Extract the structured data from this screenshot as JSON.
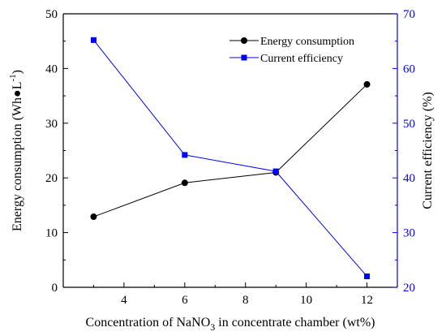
{
  "chart_data": {
    "type": "line",
    "x": [
      3,
      6,
      9,
      12
    ],
    "xlim": [
      2,
      13
    ],
    "xticks": [
      4,
      6,
      8,
      10,
      12
    ],
    "xlabel_parts": {
      "before": "Concentration of NaNO",
      "sub": "3",
      "after": " in concentrate chamber (wt%)"
    },
    "y_left": {
      "label_parts": {
        "before": "Energy consumption (Wh●L",
        "sup": "-1",
        "after": ")"
      },
      "lim": [
        0,
        50
      ],
      "ticks": [
        0,
        10,
        20,
        30,
        40,
        50
      ],
      "color": "#000000"
    },
    "y_right": {
      "label": "Current efficiency (%)",
      "lim": [
        20,
        70
      ],
      "ticks": [
        20,
        30,
        40,
        50,
        60,
        70
      ],
      "color": "#0000ff"
    },
    "series": [
      {
        "name": "Energy consumption",
        "axis": "left",
        "marker": "circle",
        "line_color": "#000000",
        "marker_color": "#000000",
        "values": [
          12.9,
          19.1,
          21.0,
          37.1
        ]
      },
      {
        "name": "Current efficiency",
        "axis": "right",
        "marker": "square",
        "line_color": "#0000ff",
        "marker_color": "#0000ff",
        "values": [
          65.2,
          44.2,
          41.2,
          22.0
        ]
      }
    ],
    "legend_position": "top-right",
    "grid": false
  }
}
